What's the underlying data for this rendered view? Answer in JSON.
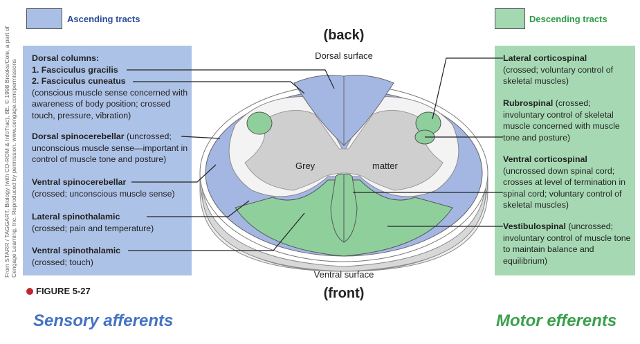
{
  "legend": {
    "ascending": "Ascending tracts",
    "descending": "Descending tracts"
  },
  "labels": {
    "back": "(back)",
    "dorsal_surface": "Dorsal surface",
    "grey": "Grey",
    "matter": "matter",
    "ventral_surface": "Ventral surface",
    "front": "(front)"
  },
  "ascending": {
    "dorsal_columns": {
      "heading": "Dorsal columns:",
      "gracilis": "1. Fasciculus gracilis",
      "cuneatus": "2. Fasciculus cuneatus",
      "detail": "(conscious muscle sense concerned with awareness of body position; crossed touch, pressure, vibration)"
    },
    "tracts": [
      {
        "name": "Dorsal spinocerebellar",
        "detail": " (uncrossed; unconscious muscle sense—important in control of muscle tone and posture)"
      },
      {
        "name": "Ventral spinocerebellar",
        "detail": "(crossed; unconscious muscle sense)"
      },
      {
        "name": "Lateral spinothalamic",
        "detail": "(crossed; pain and temperature)"
      },
      {
        "name": "Ventral spinothalamic",
        "detail": "(crossed; touch)"
      }
    ]
  },
  "descending": {
    "tracts": [
      {
        "name": "Lateral corticospinal",
        "detail": "(crossed; voluntary control of skeletal muscles)"
      },
      {
        "name": "Rubrospinal",
        "detail": " (crossed; involuntary control of skeletal muscle concerned with muscle tone and posture)"
      },
      {
        "name": "Ventral corticospinal",
        "detail": "(uncrossed down spinal cord; crosses at level of termination in spinal cord; voluntary control of skeletal muscles)"
      },
      {
        "name": "Vestibulospinal",
        "detail": " (uncrossed; involuntary control of muscle tone to maintain balance and equilibrium)"
      }
    ]
  },
  "figure": "FIGURE 5-27",
  "credit": "From STARR / TAGGART, Biology (with CD-ROM & InfoTrac), 8E. © 1998 Brooks/Cole, a part of Cengage Learning, Inc. Reproduced by permission. www.cengage.com/permissions",
  "captions": {
    "left": "Sensory afferents",
    "right": "Motor efferents"
  }
}
